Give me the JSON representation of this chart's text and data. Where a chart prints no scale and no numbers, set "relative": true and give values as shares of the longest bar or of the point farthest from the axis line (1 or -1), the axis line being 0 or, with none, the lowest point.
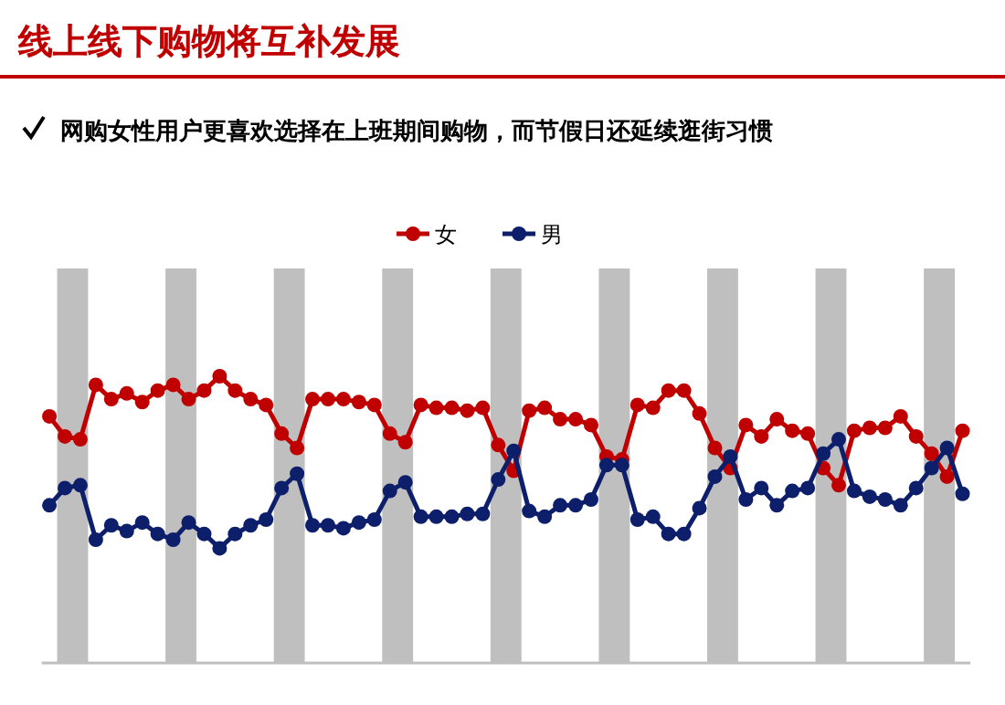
{
  "chart_data": {
    "type": "line",
    "title": "线上线下购物将互补发展",
    "subtitle": "网购女性用户更喜欢选择在上班期间购物，而节假日还延续逛街习惯",
    "relative": true,
    "marker": "circle",
    "legend": "top",
    "categories": [
      null,
      null,
      null,
      null,
      null,
      null,
      null,
      null,
      null,
      null,
      null,
      null,
      null,
      null,
      null,
      null,
      null,
      null,
      null,
      null,
      null,
      null,
      null,
      null,
      null,
      null,
      null,
      null,
      null,
      null,
      null,
      null,
      null,
      null,
      null,
      null,
      null,
      null,
      null,
      null,
      null,
      null,
      null,
      null,
      null,
      null,
      null,
      null,
      null,
      null,
      null,
      null,
      null,
      null,
      null,
      null,
      null,
      null,
      null,
      null
    ],
    "series": [
      {
        "name": "女",
        "color": "#c00000",
        "values": [
          0.86,
          0.79,
          0.78,
          0.97,
          0.92,
          0.94,
          0.91,
          0.95,
          0.97,
          0.92,
          0.95,
          1.0,
          0.95,
          0.92,
          0.9,
          0.8,
          0.75,
          0.92,
          0.92,
          0.92,
          0.91,
          0.9,
          0.8,
          0.77,
          0.9,
          0.89,
          0.89,
          0.88,
          0.89,
          0.76,
          0.67,
          0.88,
          0.89,
          0.85,
          0.85,
          0.83,
          0.72,
          0.71,
          0.9,
          0.89,
          0.95,
          0.95,
          0.87,
          0.75,
          0.68,
          0.83,
          0.79,
          0.85,
          0.81,
          0.8,
          0.68,
          0.62,
          0.81,
          0.82,
          0.82,
          0.86,
          0.79,
          0.73,
          0.65,
          0.81
        ]
      },
      {
        "name": "男",
        "color": "#0d1f6b",
        "values": [
          0.55,
          0.61,
          0.62,
          0.43,
          0.48,
          0.46,
          0.49,
          0.45,
          0.43,
          0.49,
          0.45,
          0.4,
          0.45,
          0.48,
          0.5,
          0.61,
          0.66,
          0.48,
          0.48,
          0.47,
          0.49,
          0.5,
          0.6,
          0.63,
          0.51,
          0.51,
          0.51,
          0.52,
          0.52,
          0.64,
          0.74,
          0.53,
          0.51,
          0.55,
          0.55,
          0.57,
          0.69,
          0.69,
          0.5,
          0.51,
          0.45,
          0.45,
          0.54,
          0.65,
          0.72,
          0.57,
          0.61,
          0.55,
          0.6,
          0.61,
          0.73,
          0.78,
          0.6,
          0.58,
          0.57,
          0.55,
          0.61,
          0.68,
          0.75,
          0.59
        ]
      }
    ]
  }
}
